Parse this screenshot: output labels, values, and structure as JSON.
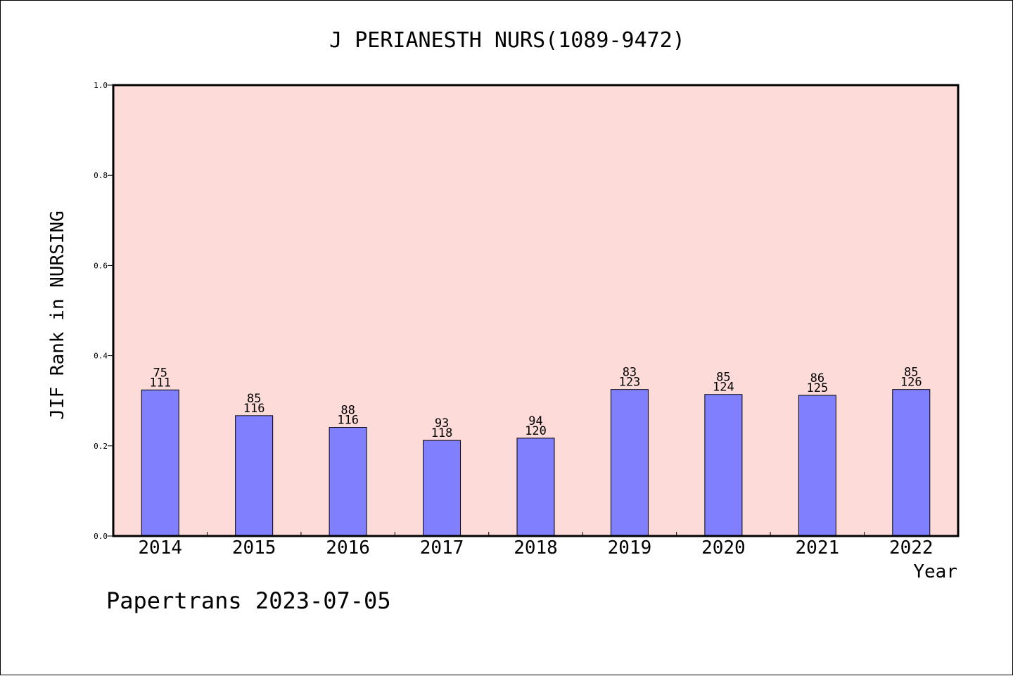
{
  "chart_data": {
    "type": "bar",
    "title": "J PERIANESTH NURS(1089-9472)",
    "xlabel": "Year",
    "ylabel": "JIF Rank in NURSING",
    "ylim": [
      0,
      1.0
    ],
    "yticks": [
      "0.0",
      "0.2",
      "0.4",
      "0.6",
      "0.8",
      "1.0"
    ],
    "categories": [
      "2014",
      "2015",
      "2016",
      "2017",
      "2018",
      "2019",
      "2020",
      "2021",
      "2022"
    ],
    "values": [
      0.324,
      0.267,
      0.241,
      0.212,
      0.217,
      0.325,
      0.314,
      0.312,
      0.325
    ],
    "rank": [
      "75",
      "85",
      "88",
      "93",
      "94",
      "83",
      "85",
      "86",
      "85"
    ],
    "total": [
      "111",
      "116",
      "116",
      "118",
      "120",
      "123",
      "124",
      "125",
      "126"
    ],
    "grid": false,
    "colors": {
      "plot_background": "#fddbd8",
      "bar": "#8080ff",
      "bar_edge": "#000000"
    }
  },
  "footer": {
    "watermark": "Papertrans 2023-07-05"
  }
}
